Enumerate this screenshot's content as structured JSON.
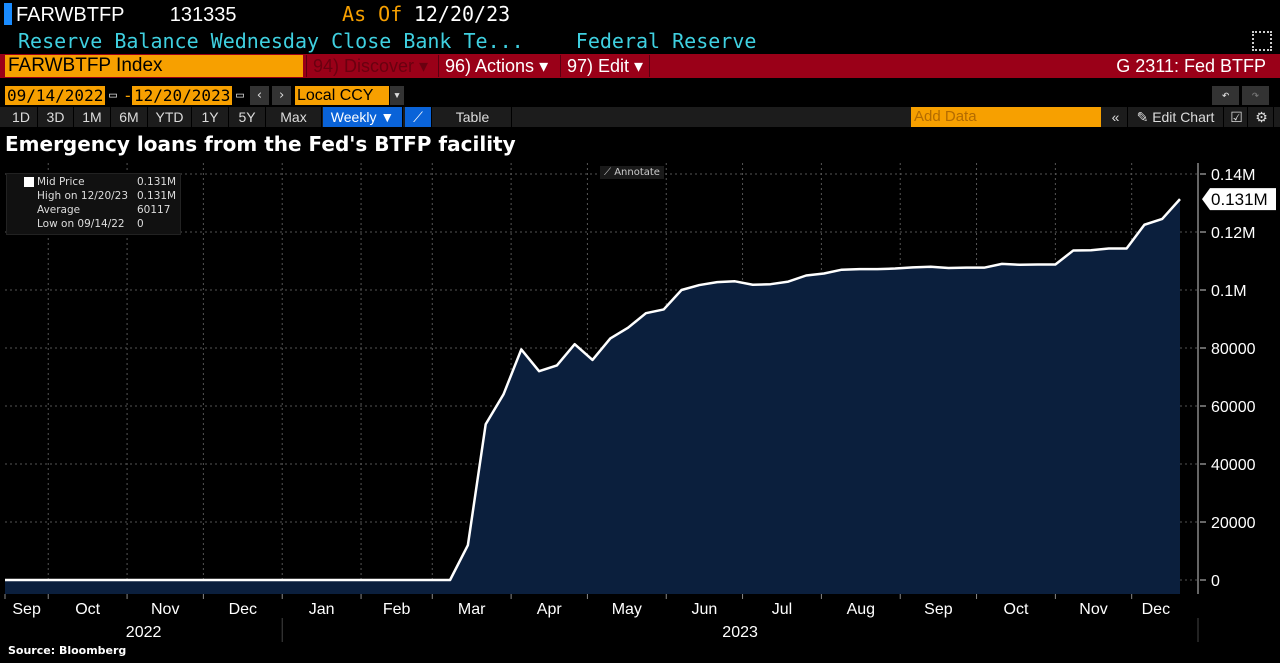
{
  "header": {
    "ticker": "FARWBTFP",
    "value": "131335",
    "as_of_label": "As Of",
    "as_of_date": "12/20/23",
    "description": "Reserve Balance Wednesday Close Bank Te...",
    "source_name": "Federal Reserve"
  },
  "command_bar": {
    "security": "FARWBTFP Index",
    "discover": "94) Discover",
    "actions": "96) Actions",
    "edit": "97) Edit",
    "page_id": "G 2311: Fed BTFP"
  },
  "range": {
    "start": "09/14/2022",
    "sep": "-",
    "end": "12/20/2023",
    "currency": "Local CCY"
  },
  "toolbar": {
    "periods": [
      "1D",
      "3D",
      "1M",
      "6M",
      "YTD",
      "1Y",
      "5Y",
      "Max"
    ],
    "frequency": "Weekly ▼",
    "table": "Table",
    "add_data_placeholder": "Add Data",
    "edit_chart": "Edit Chart"
  },
  "legend": {
    "mid_price": "Mid Price",
    "mid_price_value": "0.131M",
    "high": "High on 12/20/23",
    "high_value": "0.131M",
    "average": "Average",
    "average_value": "60117",
    "low": "Low on 09/14/22",
    "low_value": "0"
  },
  "annotate": "Annotate",
  "source": "Source: Bloomberg",
  "colors": {
    "accent": "#f7a000",
    "menu_bar": "#9a0018",
    "fill": "#0b1f3d",
    "line": "#ffffff",
    "cyan": "#3fd0e0"
  },
  "chart_data": {
    "type": "area",
    "title": "Emergency loans from the Fed's BTFP facility",
    "series": [
      {
        "name": "Mid Price",
        "start": "2022-09-14",
        "frequency": "weekly",
        "values": [
          0,
          0,
          0,
          0,
          0,
          0,
          0,
          0,
          0,
          0,
          0,
          0,
          0,
          0,
          0,
          0,
          0,
          0,
          0,
          0,
          0,
          0,
          0,
          0,
          0,
          0,
          12000,
          53700,
          64000,
          79500,
          72000,
          74000,
          81300,
          75900,
          83300,
          87000,
          92000,
          93300,
          100000,
          101700,
          102700,
          103000,
          101800,
          102000,
          102900,
          105000,
          105700,
          107000,
          107200,
          107200,
          107400,
          107800,
          108000,
          107600,
          107700,
          107700,
          109000,
          108700,
          108800,
          108800,
          113600,
          113700,
          114300,
          114300,
          122500,
          124500,
          131335
        ]
      }
    ],
    "last_value_label": "0.131M",
    "ylim": [
      0,
      140000
    ],
    "y_ticks": [
      {
        "v": 0,
        "label": "0"
      },
      {
        "v": 20000,
        "label": "20000"
      },
      {
        "v": 40000,
        "label": "40000"
      },
      {
        "v": 60000,
        "label": "60000"
      },
      {
        "v": 80000,
        "label": "80000"
      },
      {
        "v": 100000,
        "label": "0.1M"
      },
      {
        "v": 120000,
        "label": "0.12M"
      },
      {
        "v": 140000,
        "label": "0.14M"
      }
    ],
    "x_ticks": [
      "Sep",
      "Oct",
      "Nov",
      "Dec",
      "Jan",
      "Feb",
      "Mar",
      "Apr",
      "May",
      "Jun",
      "Jul",
      "Aug",
      "Sep",
      "Oct",
      "Nov",
      "Dec"
    ],
    "x_years": [
      "2022",
      "2023"
    ],
    "grid": true
  }
}
